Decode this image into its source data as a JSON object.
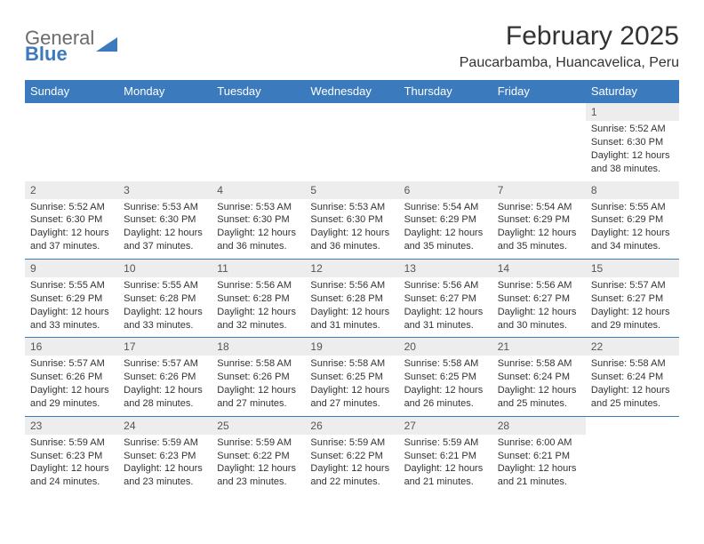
{
  "logo": {
    "line1": "General",
    "line2": "Blue"
  },
  "title": "February 2025",
  "location": "Paucarbamba, Huancavelica, Peru",
  "weekday_headers": [
    "Sunday",
    "Monday",
    "Tuesday",
    "Wednesday",
    "Thursday",
    "Friday",
    "Saturday"
  ],
  "colors": {
    "header_bg": "#3a7abd",
    "header_fg": "#ffffff",
    "daynum_bg": "#ededed",
    "rule": "#3a7abd"
  },
  "weeks": [
    [
      null,
      null,
      null,
      null,
      null,
      null,
      {
        "n": "1",
        "sunrise": "5:52 AM",
        "sunset": "6:30 PM",
        "daylight": "12 hours and 38 minutes."
      }
    ],
    [
      {
        "n": "2",
        "sunrise": "5:52 AM",
        "sunset": "6:30 PM",
        "daylight": "12 hours and 37 minutes."
      },
      {
        "n": "3",
        "sunrise": "5:53 AM",
        "sunset": "6:30 PM",
        "daylight": "12 hours and 37 minutes."
      },
      {
        "n": "4",
        "sunrise": "5:53 AM",
        "sunset": "6:30 PM",
        "daylight": "12 hours and 36 minutes."
      },
      {
        "n": "5",
        "sunrise": "5:53 AM",
        "sunset": "6:30 PM",
        "daylight": "12 hours and 36 minutes."
      },
      {
        "n": "6",
        "sunrise": "5:54 AM",
        "sunset": "6:29 PM",
        "daylight": "12 hours and 35 minutes."
      },
      {
        "n": "7",
        "sunrise": "5:54 AM",
        "sunset": "6:29 PM",
        "daylight": "12 hours and 35 minutes."
      },
      {
        "n": "8",
        "sunrise": "5:55 AM",
        "sunset": "6:29 PM",
        "daylight": "12 hours and 34 minutes."
      }
    ],
    [
      {
        "n": "9",
        "sunrise": "5:55 AM",
        "sunset": "6:29 PM",
        "daylight": "12 hours and 33 minutes."
      },
      {
        "n": "10",
        "sunrise": "5:55 AM",
        "sunset": "6:28 PM",
        "daylight": "12 hours and 33 minutes."
      },
      {
        "n": "11",
        "sunrise": "5:56 AM",
        "sunset": "6:28 PM",
        "daylight": "12 hours and 32 minutes."
      },
      {
        "n": "12",
        "sunrise": "5:56 AM",
        "sunset": "6:28 PM",
        "daylight": "12 hours and 31 minutes."
      },
      {
        "n": "13",
        "sunrise": "5:56 AM",
        "sunset": "6:27 PM",
        "daylight": "12 hours and 31 minutes."
      },
      {
        "n": "14",
        "sunrise": "5:56 AM",
        "sunset": "6:27 PM",
        "daylight": "12 hours and 30 minutes."
      },
      {
        "n": "15",
        "sunrise": "5:57 AM",
        "sunset": "6:27 PM",
        "daylight": "12 hours and 29 minutes."
      }
    ],
    [
      {
        "n": "16",
        "sunrise": "5:57 AM",
        "sunset": "6:26 PM",
        "daylight": "12 hours and 29 minutes."
      },
      {
        "n": "17",
        "sunrise": "5:57 AM",
        "sunset": "6:26 PM",
        "daylight": "12 hours and 28 minutes."
      },
      {
        "n": "18",
        "sunrise": "5:58 AM",
        "sunset": "6:26 PM",
        "daylight": "12 hours and 27 minutes."
      },
      {
        "n": "19",
        "sunrise": "5:58 AM",
        "sunset": "6:25 PM",
        "daylight": "12 hours and 27 minutes."
      },
      {
        "n": "20",
        "sunrise": "5:58 AM",
        "sunset": "6:25 PM",
        "daylight": "12 hours and 26 minutes."
      },
      {
        "n": "21",
        "sunrise": "5:58 AM",
        "sunset": "6:24 PM",
        "daylight": "12 hours and 25 minutes."
      },
      {
        "n": "22",
        "sunrise": "5:58 AM",
        "sunset": "6:24 PM",
        "daylight": "12 hours and 25 minutes."
      }
    ],
    [
      {
        "n": "23",
        "sunrise": "5:59 AM",
        "sunset": "6:23 PM",
        "daylight": "12 hours and 24 minutes."
      },
      {
        "n": "24",
        "sunrise": "5:59 AM",
        "sunset": "6:23 PM",
        "daylight": "12 hours and 23 minutes."
      },
      {
        "n": "25",
        "sunrise": "5:59 AM",
        "sunset": "6:22 PM",
        "daylight": "12 hours and 23 minutes."
      },
      {
        "n": "26",
        "sunrise": "5:59 AM",
        "sunset": "6:22 PM",
        "daylight": "12 hours and 22 minutes."
      },
      {
        "n": "27",
        "sunrise": "5:59 AM",
        "sunset": "6:21 PM",
        "daylight": "12 hours and 21 minutes."
      },
      {
        "n": "28",
        "sunrise": "6:00 AM",
        "sunset": "6:21 PM",
        "daylight": "12 hours and 21 minutes."
      },
      null
    ]
  ],
  "labels": {
    "sunrise": "Sunrise:",
    "sunset": "Sunset:",
    "daylight": "Daylight:"
  }
}
